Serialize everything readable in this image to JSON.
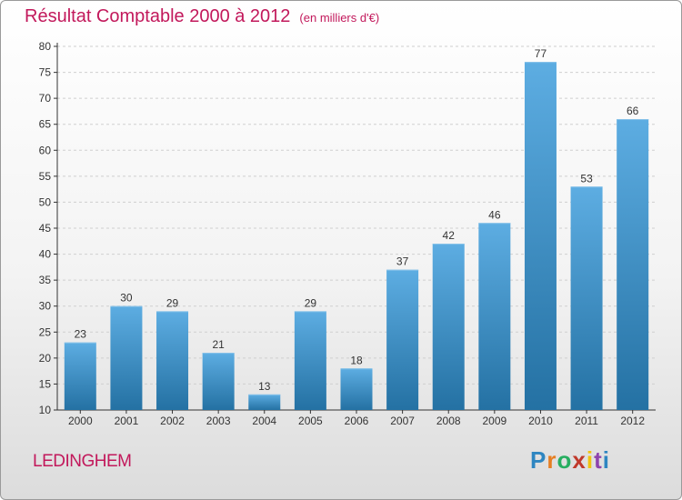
{
  "title": "Résultat Comptable 2000 à 2012",
  "subtitle": "(en milliers d'€)",
  "town": "LEDINGHEM",
  "logo": {
    "text": "Proxiti",
    "letter_colors": [
      "#2e86c1",
      "#e67e22",
      "#27ae60",
      "#c0392b",
      "#f1c40f",
      "#8e44ad",
      "#2e86c1"
    ]
  },
  "colors": {
    "bar_top": "#5dade2",
    "bar_bottom": "#2471a3",
    "axis": "#333333",
    "grid": "#cfcfcf",
    "title": "#c2185b"
  },
  "chart_data": {
    "type": "bar",
    "categories": [
      "2000",
      "2001",
      "2002",
      "2003",
      "2004",
      "2005",
      "2006",
      "2007",
      "2008",
      "2009",
      "2010",
      "2011",
      "2012"
    ],
    "values": [
      23,
      30,
      29,
      21,
      13,
      29,
      18,
      37,
      42,
      46,
      77,
      53,
      66
    ],
    "ylim": [
      10,
      80
    ],
    "yticks": [
      10,
      15,
      20,
      25,
      30,
      35,
      40,
      45,
      50,
      55,
      60,
      65,
      70,
      75,
      80
    ],
    "grid": "dashed horizontal"
  }
}
